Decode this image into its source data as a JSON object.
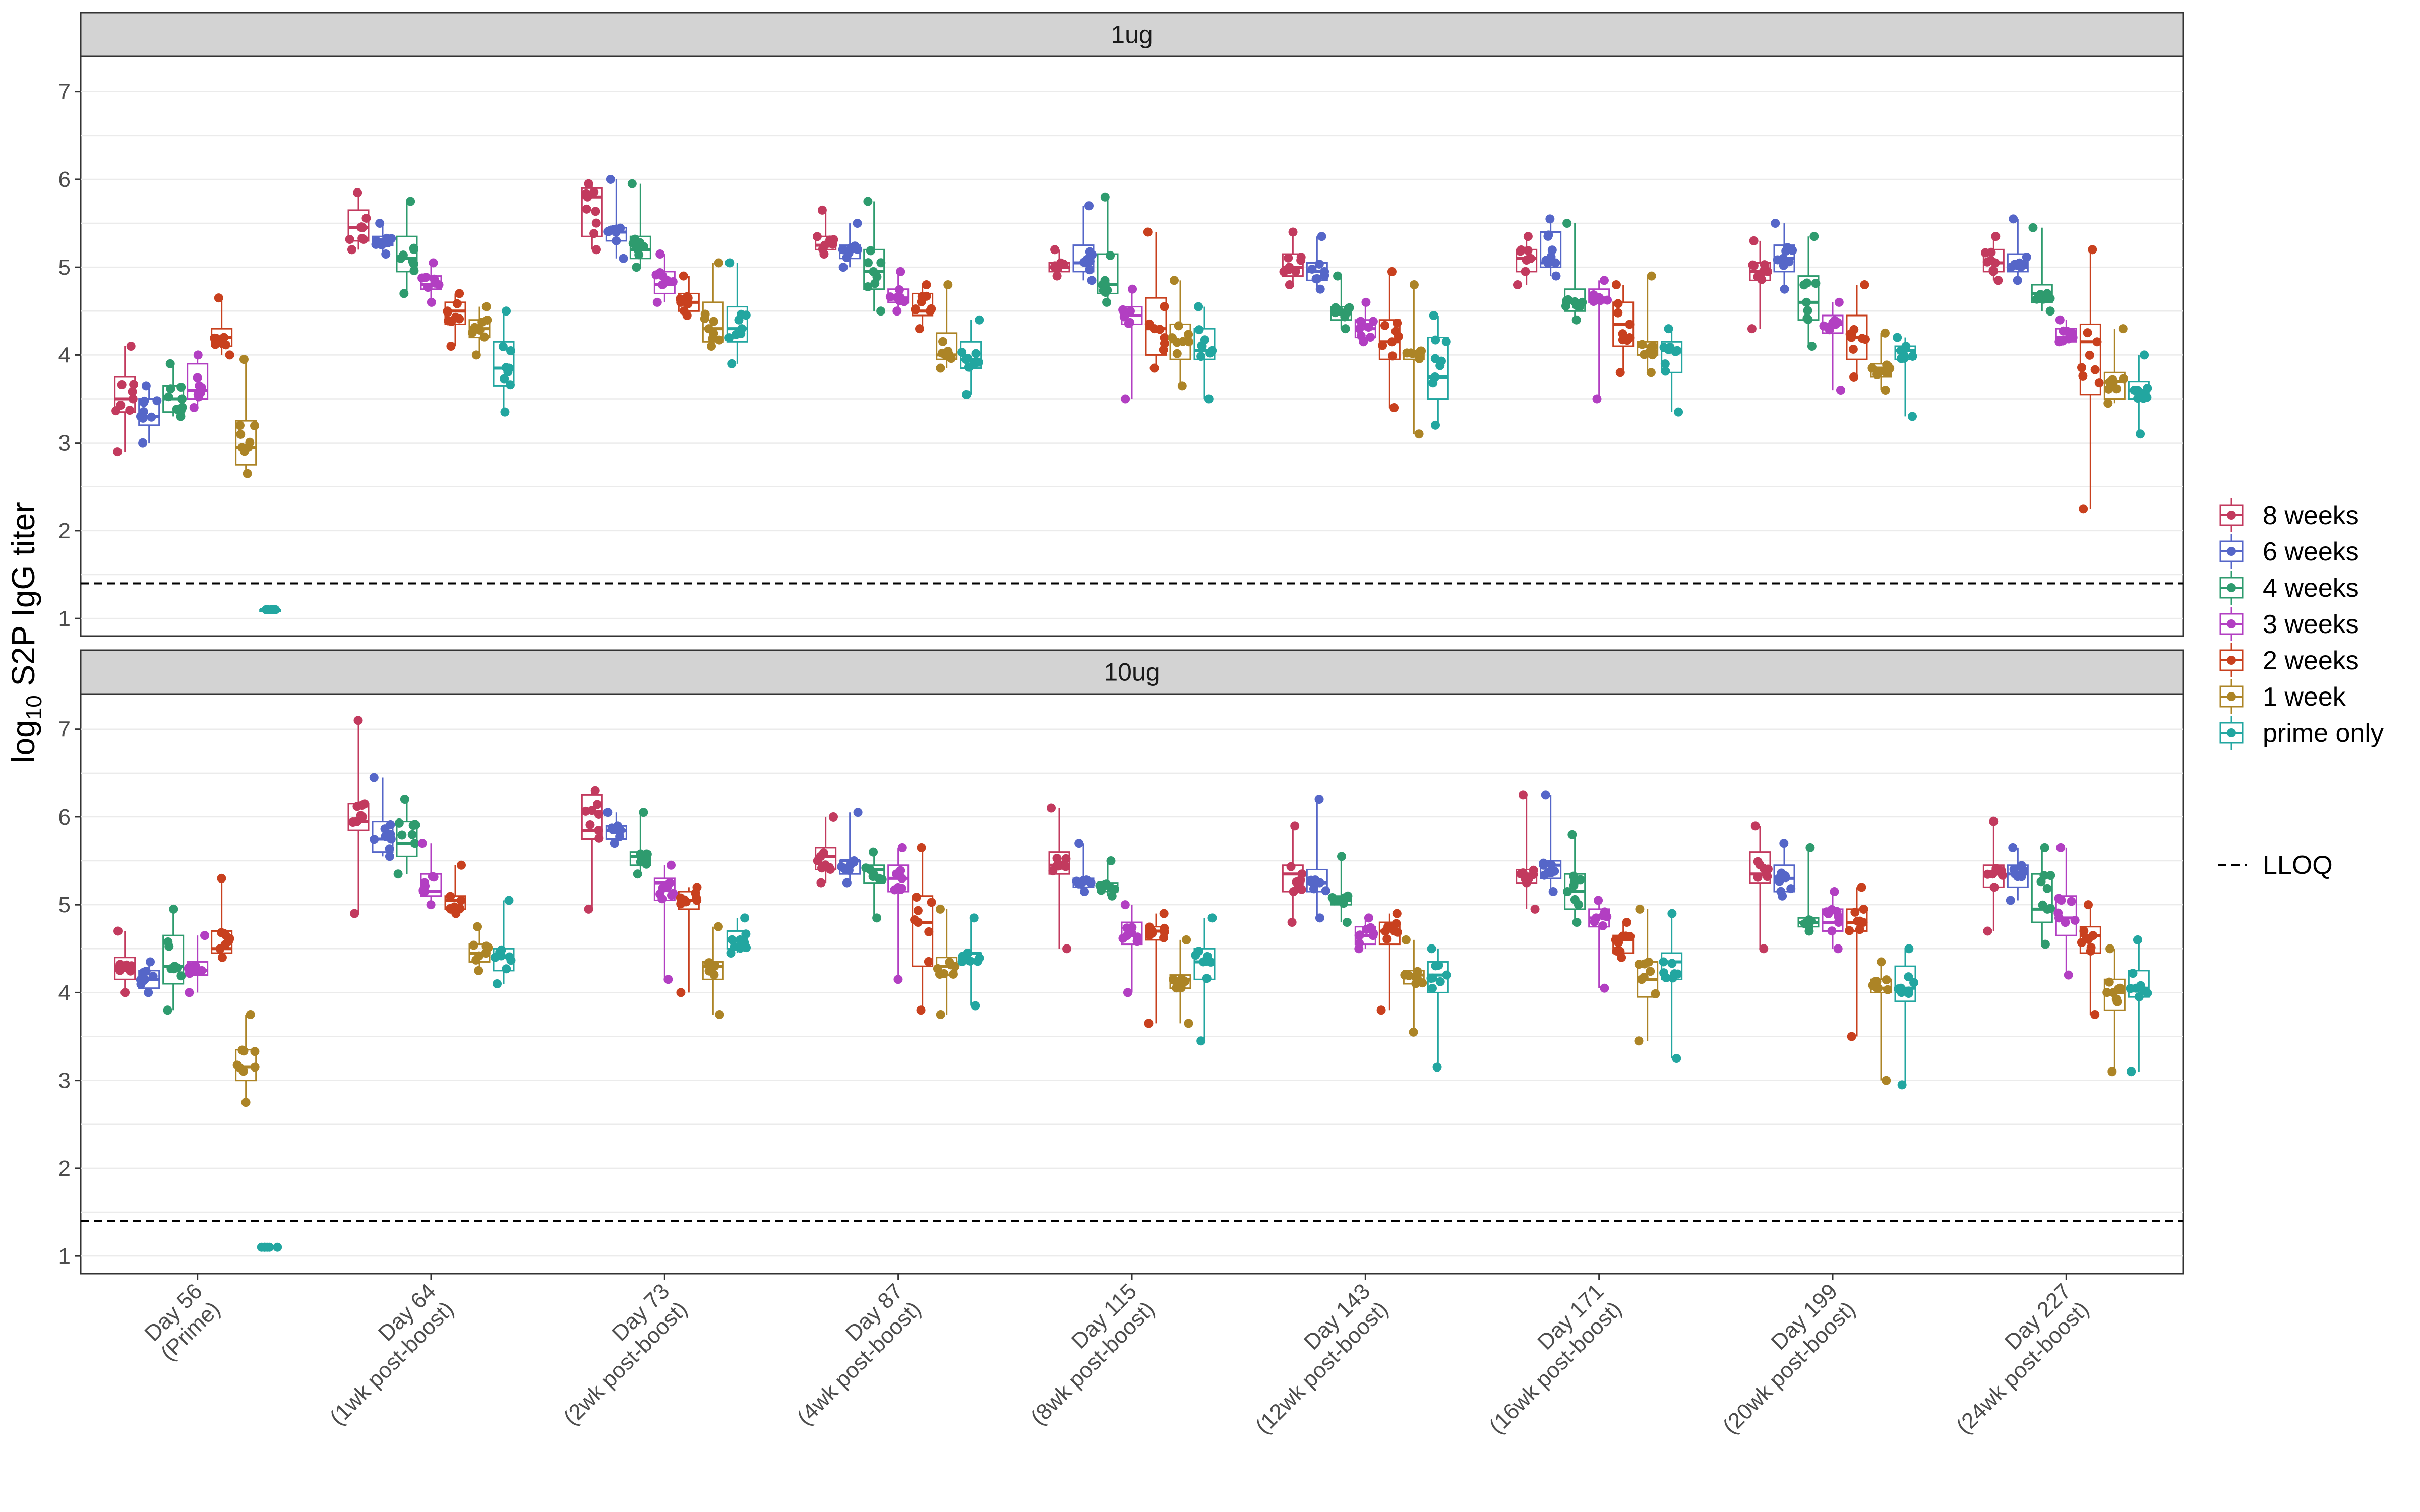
{
  "chart_data": {
    "type": "box",
    "ylabel": {
      "prefix": "log",
      "sub": "10",
      "rest": " S2P IgG titer"
    },
    "ylim": [
      0.8,
      7.4
    ],
    "yticks": [
      1,
      2,
      3,
      4,
      5,
      6,
      7
    ],
    "lloq": 1.4,
    "x_categories": [
      {
        "line1": "Day 56",
        "line2": "(Prime)"
      },
      {
        "line1": "Day 64",
        "line2": "(1wk post-boost)"
      },
      {
        "line1": "Day 73",
        "line2": "(2wk post-boost)"
      },
      {
        "line1": "Day 87",
        "line2": "(4wk post-boost)"
      },
      {
        "line1": "Day 115",
        "line2": "(8wk post-boost)"
      },
      {
        "line1": "Day 143",
        "line2": "(12wk post-boost)"
      },
      {
        "line1": "Day 171",
        "line2": "(16wk post-boost)"
      },
      {
        "line1": "Day 199",
        "line2": "(20wk post-boost)"
      },
      {
        "line1": "Day 227",
        "line2": "(24wk post-boost)"
      }
    ],
    "series": [
      {
        "name": "8 weeks",
        "color": "#C23A5E"
      },
      {
        "name": "6 weeks",
        "color": "#5566C8"
      },
      {
        "name": "4 weeks",
        "color": "#2E9B6E"
      },
      {
        "name": "3 weeks",
        "color": "#B23FC2"
      },
      {
        "name": "2 weeks",
        "color": "#C8401E"
      },
      {
        "name": "1 week",
        "color": "#AC8426"
      },
      {
        "name": "prime only",
        "color": "#22A6A0"
      }
    ],
    "lloq_label": "LLOQ",
    "note": "Boxes given as [min, q1, median, q3, max]; null = group not present at that time point.",
    "panels": [
      {
        "title": "1ug",
        "boxes": [
          [
            [
              2.9,
              3.35,
              3.5,
              3.75,
              4.1
            ],
            [
              3.0,
              3.2,
              3.3,
              3.5,
              3.65
            ],
            [
              3.3,
              3.35,
              3.5,
              3.65,
              3.9
            ],
            [
              3.4,
              3.5,
              3.6,
              3.9,
              4.0
            ],
            [
              4.0,
              4.1,
              4.2,
              4.3,
              4.65
            ],
            [
              2.65,
              2.75,
              2.95,
              3.25,
              3.95
            ],
            [
              1.1,
              1.1,
              1.1,
              1.1,
              1.1
            ]
          ],
          [
            [
              5.2,
              5.3,
              5.45,
              5.65,
              5.85
            ],
            [
              5.15,
              5.25,
              5.3,
              5.35,
              5.5
            ],
            [
              4.7,
              4.95,
              5.1,
              5.35,
              5.75
            ],
            [
              4.6,
              4.75,
              4.8,
              4.9,
              5.05
            ],
            [
              4.1,
              4.35,
              4.5,
              4.6,
              4.7
            ],
            [
              4.0,
              4.2,
              4.3,
              4.4,
              4.55
            ],
            [
              3.35,
              3.65,
              3.85,
              4.15,
              4.5
            ]
          ],
          [
            [
              5.2,
              5.35,
              5.8,
              5.9,
              5.95
            ],
            [
              5.1,
              5.3,
              5.4,
              5.45,
              6.0
            ],
            [
              5.0,
              5.1,
              5.2,
              5.35,
              5.95
            ],
            [
              4.6,
              4.7,
              4.8,
              4.95,
              5.15
            ],
            [
              4.45,
              4.5,
              4.6,
              4.7,
              4.9
            ],
            [
              4.1,
              4.15,
              4.3,
              4.6,
              5.05
            ],
            [
              3.9,
              4.15,
              4.3,
              4.55,
              5.05
            ]
          ],
          [
            [
              5.15,
              5.2,
              5.25,
              5.35,
              5.65
            ],
            [
              5.0,
              5.1,
              5.2,
              5.25,
              5.5
            ],
            [
              4.5,
              4.75,
              4.95,
              5.2,
              5.75
            ],
            [
              4.5,
              4.6,
              4.65,
              4.75,
              4.95
            ],
            [
              4.3,
              4.45,
              4.5,
              4.7,
              4.8
            ],
            [
              3.85,
              3.95,
              4.0,
              4.25,
              4.8
            ],
            [
              3.55,
              3.85,
              3.95,
              4.15,
              4.4
            ]
          ],
          [
            [
              4.9,
              4.95,
              5.0,
              5.05,
              5.2
            ],
            [
              4.85,
              4.95,
              5.05,
              5.25,
              5.7
            ],
            [
              4.6,
              4.7,
              4.8,
              5.15,
              5.8
            ],
            [
              3.5,
              4.35,
              4.45,
              4.55,
              4.75
            ],
            [
              3.85,
              4.0,
              4.3,
              4.65,
              5.4
            ],
            [
              3.65,
              3.95,
              4.15,
              4.35,
              4.85
            ],
            [
              3.5,
              3.95,
              4.05,
              4.3,
              4.55
            ]
          ],
          [
            [
              4.8,
              4.9,
              5.0,
              5.15,
              5.4
            ],
            [
              4.75,
              4.85,
              4.95,
              5.05,
              5.35
            ],
            [
              4.3,
              4.4,
              4.5,
              4.55,
              4.9
            ],
            [
              4.15,
              4.2,
              4.3,
              4.4,
              4.6
            ],
            [
              3.4,
              3.95,
              4.15,
              4.4,
              4.95
            ],
            [
              3.1,
              3.95,
              4.0,
              4.05,
              4.8
            ],
            [
              3.2,
              3.5,
              3.75,
              4.2,
              4.45
            ]
          ],
          [
            [
              4.8,
              4.95,
              5.1,
              5.2,
              5.35
            ],
            [
              4.9,
              5.0,
              5.05,
              5.4,
              5.55
            ],
            [
              4.4,
              4.5,
              4.6,
              4.75,
              5.5
            ],
            [
              3.5,
              4.6,
              4.65,
              4.75,
              4.85
            ],
            [
              3.8,
              4.1,
              4.35,
              4.6,
              4.8
            ],
            [
              3.8,
              4.0,
              4.1,
              4.15,
              4.9
            ],
            [
              3.35,
              3.8,
              4.05,
              4.15,
              4.3
            ]
          ],
          [
            [
              4.3,
              4.85,
              4.95,
              5.05,
              5.3
            ],
            [
              4.75,
              4.95,
              5.1,
              5.25,
              5.5
            ],
            [
              4.1,
              4.4,
              4.6,
              4.9,
              5.35
            ],
            [
              3.6,
              4.25,
              4.35,
              4.45,
              4.6
            ],
            [
              3.75,
              3.95,
              4.2,
              4.45,
              4.8
            ],
            [
              3.6,
              3.75,
              3.85,
              3.9,
              4.25
            ],
            [
              3.3,
              3.95,
              4.05,
              4.1,
              4.2
            ]
          ],
          [
            [
              4.85,
              4.95,
              5.05,
              5.2,
              5.35
            ],
            [
              4.85,
              4.95,
              5.0,
              5.15,
              5.55
            ],
            [
              4.5,
              4.6,
              4.7,
              4.8,
              5.45
            ],
            [
              4.15,
              4.15,
              4.2,
              4.3,
              4.4
            ],
            [
              2.25,
              3.55,
              4.15,
              4.35,
              5.2
            ],
            [
              3.45,
              3.5,
              3.7,
              3.8,
              4.3
            ],
            [
              3.1,
              3.5,
              3.6,
              3.7,
              4.0
            ]
          ]
        ]
      },
      {
        "title": "10ug",
        "boxes": [
          [
            [
              4.0,
              4.15,
              4.25,
              4.4,
              4.7
            ],
            [
              4.0,
              4.05,
              4.15,
              4.25,
              4.35
            ],
            [
              3.8,
              4.1,
              4.3,
              4.65,
              4.95
            ],
            [
              4.0,
              4.2,
              4.25,
              4.35,
              4.65
            ],
            [
              4.4,
              4.45,
              4.5,
              4.7,
              5.3
            ],
            [
              2.75,
              3.0,
              3.15,
              3.35,
              3.75
            ],
            [
              1.1,
              1.1,
              1.1,
              1.1,
              1.1
            ]
          ],
          [
            [
              4.9,
              5.85,
              5.95,
              6.15,
              7.1
            ],
            [
              5.55,
              5.6,
              5.75,
              5.95,
              6.45
            ],
            [
              5.35,
              5.55,
              5.7,
              5.95,
              6.2
            ],
            [
              5.0,
              5.1,
              5.15,
              5.35,
              5.7
            ],
            [
              4.9,
              4.95,
              5.05,
              5.1,
              5.45
            ],
            [
              4.25,
              4.35,
              4.45,
              4.55,
              4.75
            ],
            [
              4.1,
              4.25,
              4.4,
              4.5,
              5.05
            ]
          ],
          [
            [
              4.95,
              5.75,
              5.85,
              6.25,
              6.3
            ],
            [
              5.7,
              5.75,
              5.85,
              5.9,
              6.05
            ],
            [
              5.35,
              5.45,
              5.55,
              5.6,
              6.05
            ],
            [
              4.15,
              5.05,
              5.25,
              5.3,
              5.45
            ],
            [
              4.0,
              4.95,
              5.05,
              5.15,
              5.2
            ],
            [
              3.75,
              4.15,
              4.3,
              4.35,
              4.75
            ],
            [
              4.45,
              4.5,
              4.6,
              4.7,
              4.85
            ]
          ],
          [
            [
              5.25,
              5.4,
              5.55,
              5.65,
              6.0
            ],
            [
              5.25,
              5.35,
              5.5,
              5.5,
              6.05
            ],
            [
              4.85,
              5.25,
              5.4,
              5.45,
              5.6
            ],
            [
              4.15,
              5.15,
              5.3,
              5.45,
              5.65
            ],
            [
              3.8,
              4.3,
              4.8,
              5.1,
              5.65
            ],
            [
              3.75,
              4.2,
              4.3,
              4.4,
              4.95
            ],
            [
              3.85,
              4.35,
              4.45,
              4.45,
              4.85
            ]
          ],
          [
            [
              4.5,
              5.35,
              5.45,
              5.6,
              6.1
            ],
            [
              5.15,
              5.2,
              5.25,
              5.3,
              5.7
            ],
            [
              5.1,
              5.15,
              5.2,
              5.25,
              5.5
            ],
            [
              4.0,
              4.55,
              4.65,
              4.8,
              5.0
            ],
            [
              3.65,
              4.6,
              4.7,
              4.75,
              4.9
            ],
            [
              3.65,
              4.05,
              4.15,
              4.2,
              4.6
            ],
            [
              3.45,
              4.15,
              4.35,
              4.5,
              4.85
            ]
          ],
          [
            [
              4.8,
              5.15,
              5.35,
              5.45,
              5.9
            ],
            [
              4.85,
              5.15,
              5.25,
              5.4,
              6.2
            ],
            [
              4.8,
              5.0,
              5.05,
              5.1,
              5.55
            ],
            [
              4.5,
              4.55,
              4.65,
              4.75,
              4.85
            ],
            [
              3.8,
              4.55,
              4.7,
              4.8,
              4.9
            ],
            [
              3.55,
              4.1,
              4.2,
              4.25,
              4.6
            ],
            [
              3.15,
              4.0,
              4.2,
              4.35,
              4.5
            ]
          ],
          [
            [
              4.95,
              5.25,
              5.35,
              5.4,
              6.25
            ],
            [
              5.15,
              5.3,
              5.45,
              5.5,
              6.25
            ],
            [
              4.8,
              4.95,
              5.15,
              5.35,
              5.8
            ],
            [
              4.05,
              4.75,
              4.85,
              4.95,
              5.05
            ],
            [
              4.4,
              4.45,
              4.6,
              4.65,
              4.8
            ],
            [
              3.45,
              3.95,
              4.15,
              4.35,
              4.95
            ],
            [
              3.25,
              4.15,
              4.35,
              4.45,
              4.9
            ]
          ],
          [
            [
              4.5,
              5.25,
              5.35,
              5.6,
              5.9
            ],
            [
              5.1,
              5.15,
              5.3,
              5.45,
              5.7
            ],
            [
              4.7,
              4.75,
              4.8,
              4.85,
              5.65
            ],
            [
              4.5,
              4.7,
              4.8,
              4.95,
              5.15
            ],
            [
              3.5,
              4.7,
              4.8,
              4.95,
              5.2
            ],
            [
              3.0,
              4.0,
              4.05,
              4.15,
              4.35
            ],
            [
              2.95,
              3.9,
              4.05,
              4.3,
              4.5
            ]
          ],
          [
            [
              4.7,
              5.2,
              5.35,
              5.45,
              5.95
            ],
            [
              5.05,
              5.2,
              5.35,
              5.45,
              5.65
            ],
            [
              4.55,
              4.8,
              4.95,
              5.35,
              5.65
            ],
            [
              4.2,
              4.65,
              4.85,
              5.1,
              5.65
            ],
            [
              3.75,
              4.45,
              4.65,
              4.75,
              5.0
            ],
            [
              3.1,
              3.8,
              4.0,
              4.15,
              4.5
            ],
            [
              3.1,
              3.95,
              4.05,
              4.25,
              4.6
            ]
          ]
        ]
      }
    ]
  }
}
